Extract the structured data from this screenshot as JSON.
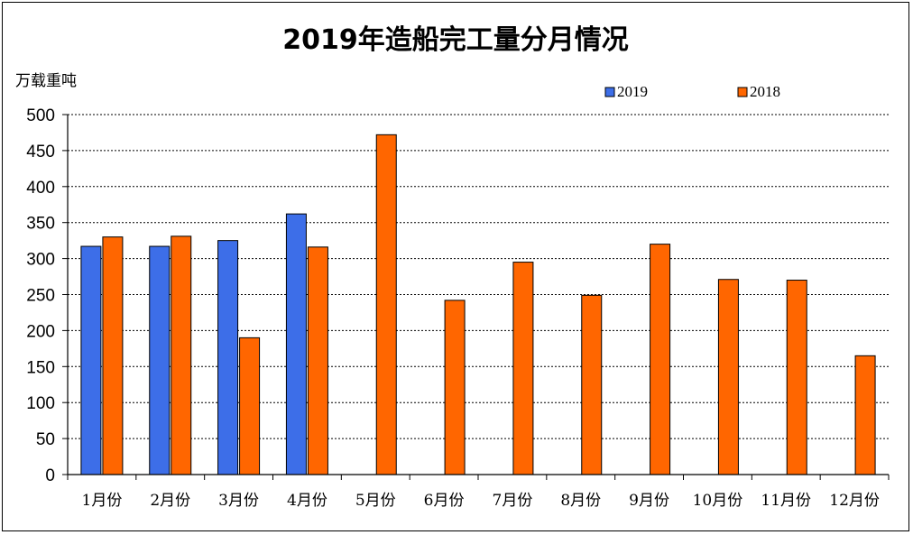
{
  "chart_data": {
    "type": "bar",
    "title": "2019年造船完工量分月情况",
    "ylabel": "万载重吨",
    "xlabel": "",
    "ylim": [
      0,
      500
    ],
    "yticks": [
      0,
      50,
      100,
      150,
      200,
      250,
      300,
      350,
      400,
      450,
      500
    ],
    "grid": "horizontal-dashed",
    "legend_position": "top-right",
    "categories": [
      "1月份",
      "2月份",
      "3月份",
      "4月份",
      "5月份",
      "6月份",
      "7月份",
      "8月份",
      "9月份",
      "10月份",
      "11月份",
      "12月份"
    ],
    "series": [
      {
        "name": "2019",
        "color": "#3d6ee8",
        "values": [
          317,
          317,
          325,
          362,
          null,
          null,
          null,
          null,
          null,
          null,
          null,
          null
        ]
      },
      {
        "name": "2018",
        "color": "#ff6600",
        "values": [
          330,
          331,
          190,
          316,
          472,
          242,
          295,
          249,
          320,
          271,
          270,
          165
        ]
      }
    ]
  }
}
